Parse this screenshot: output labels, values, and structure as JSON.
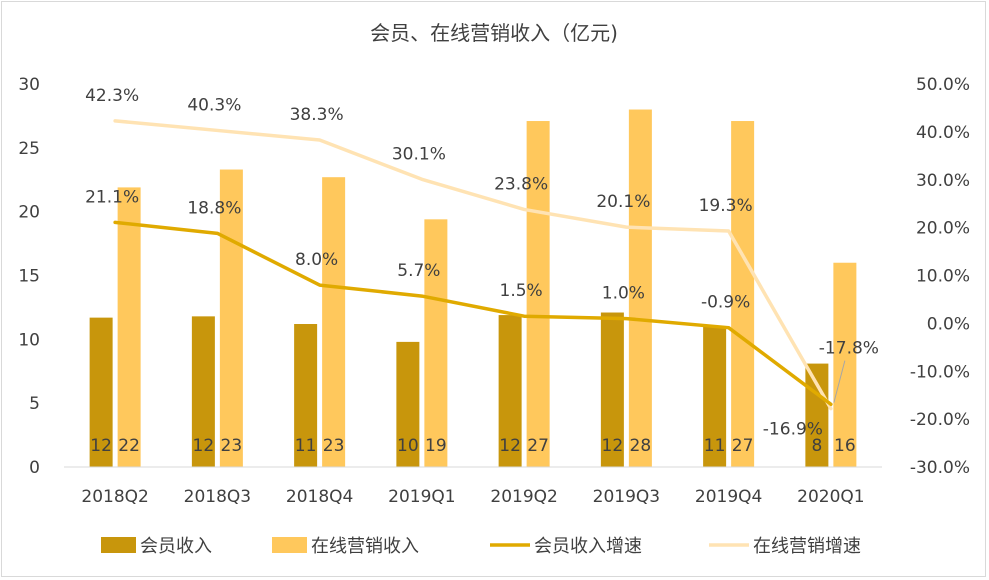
{
  "chart_data": {
    "type": "bar",
    "title": "会员、在线营销收入（亿元)",
    "categories": [
      "2018Q2",
      "2018Q3",
      "2018Q4",
      "2019Q1",
      "2019Q2",
      "2019Q3",
      "2019Q4",
      "2020Q1"
    ],
    "y_left": {
      "min": 0,
      "max": 30,
      "step": 5,
      "tick_labels": [
        "0",
        "5",
        "10",
        "15",
        "20",
        "25",
        "30"
      ]
    },
    "y_right": {
      "min": -30,
      "max": 50,
      "step": 10,
      "tick_labels": [
        "-30.0%",
        "-20.0%",
        "-10.0%",
        "0.0%",
        "10.0%",
        "20.0%",
        "30.0%",
        "40.0%",
        "50.0%"
      ]
    },
    "grid": false,
    "legend_position": "bottom",
    "series": [
      {
        "name": "会员收入",
        "kind": "bar",
        "axis": "left",
        "color": "#c8960c",
        "values": [
          11.7,
          11.8,
          11.2,
          9.8,
          11.9,
          12.1,
          11.0,
          8.1
        ],
        "labels": [
          "12",
          "12",
          "11",
          "10",
          "12",
          "12",
          "11",
          "8"
        ]
      },
      {
        "name": "在线营销收入",
        "kind": "bar",
        "axis": "left",
        "color": "#ffc85c",
        "values": [
          21.9,
          23.3,
          22.7,
          19.4,
          27.1,
          28.0,
          27.1,
          16.0
        ],
        "labels": [
          "22",
          "23",
          "23",
          "19",
          "27",
          "28",
          "27",
          "16"
        ]
      },
      {
        "name": "会员收入增速",
        "kind": "line",
        "axis": "right",
        "color": "#e0aa00",
        "values": [
          21.1,
          18.8,
          8.0,
          5.7,
          1.5,
          1.0,
          -0.9,
          -16.9
        ],
        "labels": [
          "21.1%",
          "18.8%",
          "8.0%",
          "5.7%",
          "1.5%",
          "1.0%",
          "-0.9%",
          "-16.9%"
        ]
      },
      {
        "name": "在线营销增速",
        "kind": "line",
        "axis": "right",
        "color": "#ffe3b3",
        "values": [
          42.3,
          40.3,
          38.3,
          30.1,
          23.8,
          20.1,
          19.3,
          -17.8
        ],
        "labels": [
          "42.3%",
          "40.3%",
          "38.3%",
          "30.1%",
          "23.8%",
          "20.1%",
          "19.3%",
          "-17.8%"
        ]
      }
    ]
  }
}
